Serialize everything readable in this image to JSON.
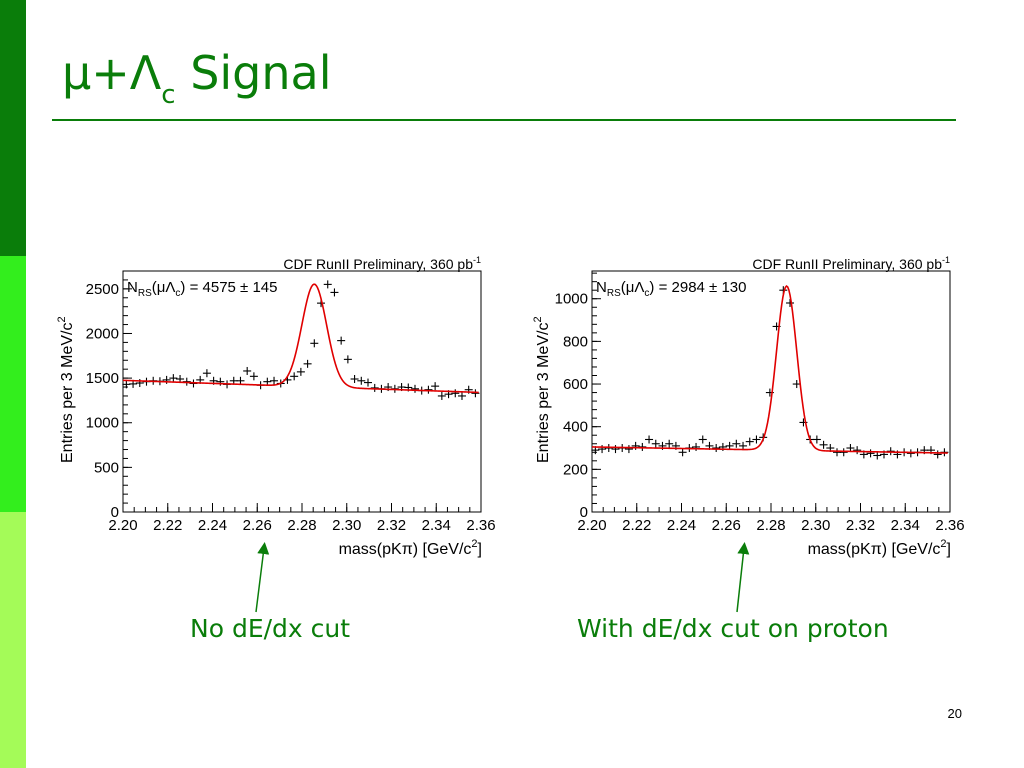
{
  "slide": {
    "title_main": "μ+Λ",
    "title_sub": "c",
    "title_tail": " Signal",
    "page_number": "20",
    "colors": {
      "accent": "#0a7d0a",
      "bar_top": "#0a7d0a",
      "bar_mid": "#33ee1d",
      "bar_bot": "#a4fb58",
      "fit_curve": "#e00000"
    },
    "captions": [
      {
        "text": "No dE/dx cut"
      },
      {
        "text": "With dE/dx cut on proton"
      }
    ]
  },
  "chart_data": [
    {
      "type": "scatter",
      "header": "CDF RunII Preliminary, 360 pb",
      "header_sup": "-1",
      "annotation": "N",
      "annotation_sub": "RS",
      "annotation_mid": "(μΛ",
      "annotation_mid_sub": "c",
      "annotation_tail": ") = 4575 ± 145",
      "xlabel": "mass(pKπ) [GeV/c",
      "xlabel_sup": "2",
      "xlabel_tail": "]",
      "ylabel": "Entries per 3 MeV/c",
      "ylabel_sup": "2",
      "xlim": [
        2.2,
        2.36
      ],
      "ylim": [
        0,
        2700
      ],
      "xticks": [
        "2.20",
        "2.22",
        "2.24",
        "2.26",
        "2.28",
        "2.30",
        "2.32",
        "2.34",
        "2.36"
      ],
      "yticks": [
        "0",
        "500",
        "1000",
        "1500",
        "2000",
        "2500"
      ],
      "points": {
        "x": [
          2.2015,
          2.2045,
          2.2075,
          2.2105,
          2.2135,
          2.2165,
          2.2195,
          2.2225,
          2.2255,
          2.2285,
          2.2315,
          2.2345,
          2.2375,
          2.2405,
          2.2435,
          2.2465,
          2.2495,
          2.2525,
          2.2555,
          2.2585,
          2.2615,
          2.2645,
          2.2675,
          2.2705,
          2.2735,
          2.2765,
          2.2795,
          2.2825,
          2.2855,
          2.2885,
          2.2915,
          2.2945,
          2.2975,
          2.3005,
          2.3035,
          2.3065,
          2.3095,
          2.3125,
          2.3155,
          2.3185,
          2.3215,
          2.3245,
          2.3275,
          2.3305,
          2.3335,
          2.3365,
          2.3395,
          2.3425,
          2.3455,
          2.3485,
          2.3515,
          2.3545,
          2.3575
        ],
        "y": [
          1430,
          1435,
          1445,
          1460,
          1470,
          1465,
          1480,
          1500,
          1490,
          1460,
          1440,
          1480,
          1555,
          1470,
          1460,
          1430,
          1470,
          1470,
          1580,
          1520,
          1420,
          1460,
          1470,
          1440,
          1480,
          1520,
          1570,
          1660,
          1890,
          2340,
          2550,
          2460,
          1920,
          1710,
          1490,
          1470,
          1450,
          1390,
          1380,
          1400,
          1380,
          1400,
          1395,
          1380,
          1360,
          1370,
          1410,
          1300,
          1320,
          1330,
          1300,
          1370,
          1330
        ]
      },
      "fit": {
        "background_intercept": 1475,
        "background_slope": -850,
        "peak_center": 2.2855,
        "peak_sigma": 0.0055,
        "peak_amplitude": 1150
      }
    },
    {
      "type": "scatter",
      "header": "CDF RunII Preliminary, 360 pb",
      "header_sup": "-1",
      "annotation": "N",
      "annotation_sub": "RS",
      "annotation_mid": "(μΛ",
      "annotation_mid_sub": "c",
      "annotation_tail": ") = 2984 ± 130",
      "xlabel": "mass(pKπ) [GeV/c",
      "xlabel_sup": "2",
      "xlabel_tail": "]",
      "ylabel": "Entries per 3 MeV/c",
      "ylabel_sup": "2",
      "xlim": [
        2.2,
        2.36
      ],
      "ylim": [
        0,
        1130
      ],
      "xticks": [
        "2.20",
        "2.22",
        "2.24",
        "2.26",
        "2.28",
        "2.30",
        "2.32",
        "2.34",
        "2.36"
      ],
      "yticks": [
        "0",
        "200",
        "400",
        "600",
        "800",
        "1000"
      ],
      "points": {
        "x": [
          2.2015,
          2.2045,
          2.2075,
          2.2105,
          2.2135,
          2.2165,
          2.2195,
          2.2225,
          2.2255,
          2.2285,
          2.2315,
          2.2345,
          2.2375,
          2.2405,
          2.2435,
          2.2465,
          2.2495,
          2.2525,
          2.2555,
          2.2585,
          2.2615,
          2.2645,
          2.2675,
          2.2705,
          2.2735,
          2.2765,
          2.2795,
          2.2825,
          2.2855,
          2.2885,
          2.2915,
          2.2945,
          2.2975,
          2.3005,
          2.3035,
          2.3065,
          2.3095,
          2.3125,
          2.3155,
          2.3185,
          2.3215,
          2.3245,
          2.3275,
          2.3305,
          2.3335,
          2.3365,
          2.3395,
          2.3425,
          2.3455,
          2.3485,
          2.3515,
          2.3545,
          2.3575
        ],
        "y": [
          290,
          295,
          300,
          295,
          300,
          295,
          310,
          305,
          340,
          320,
          310,
          320,
          310,
          280,
          300,
          305,
          340,
          310,
          300,
          305,
          310,
          320,
          310,
          330,
          340,
          350,
          560,
          870,
          1040,
          980,
          600,
          420,
          340,
          340,
          315,
          300,
          280,
          280,
          300,
          290,
          270,
          275,
          265,
          270,
          285,
          270,
          280,
          275,
          280,
          290,
          290,
          270,
          280
        ]
      },
      "fit": {
        "background_intercept": 305,
        "background_slope": -180,
        "peak_center": 2.287,
        "peak_sigma": 0.0045,
        "peak_amplitude": 770
      }
    }
  ]
}
